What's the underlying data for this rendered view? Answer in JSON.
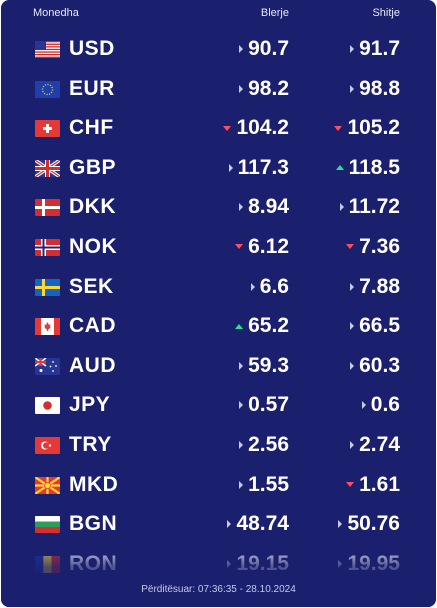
{
  "header": {
    "currency_label": "Monedha",
    "buy_label": "Blerje",
    "sell_label": "Shitje"
  },
  "colors": {
    "background": "#1a1f6e",
    "up": "#2ee08f",
    "down": "#ff4d5e",
    "flat": "#c5cae9"
  },
  "rates": [
    {
      "code": "USD",
      "flag": "us-flag",
      "buy": "90.7",
      "buy_trend": "flat",
      "sell": "91.7",
      "sell_trend": "flat"
    },
    {
      "code": "EUR",
      "flag": "eu-flag",
      "buy": "98.2",
      "buy_trend": "flat",
      "sell": "98.8",
      "sell_trend": "flat"
    },
    {
      "code": "CHF",
      "flag": "ch-flag",
      "buy": "104.2",
      "buy_trend": "down",
      "sell": "105.2",
      "sell_trend": "down"
    },
    {
      "code": "GBP",
      "flag": "gb-flag",
      "buy": "117.3",
      "buy_trend": "flat",
      "sell": "118.5",
      "sell_trend": "up"
    },
    {
      "code": "DKK",
      "flag": "dk-flag",
      "buy": "8.94",
      "buy_trend": "flat",
      "sell": "11.72",
      "sell_trend": "flat"
    },
    {
      "code": "NOK",
      "flag": "no-flag",
      "buy": "6.12",
      "buy_trend": "down",
      "sell": "7.36",
      "sell_trend": "down"
    },
    {
      "code": "SEK",
      "flag": "se-flag",
      "buy": "6.6",
      "buy_trend": "flat",
      "sell": "7.88",
      "sell_trend": "flat"
    },
    {
      "code": "CAD",
      "flag": "ca-flag",
      "buy": "65.2",
      "buy_trend": "up",
      "sell": "66.5",
      "sell_trend": "flat"
    },
    {
      "code": "AUD",
      "flag": "au-flag",
      "buy": "59.3",
      "buy_trend": "flat",
      "sell": "60.3",
      "sell_trend": "flat"
    },
    {
      "code": "JPY",
      "flag": "jp-flag",
      "buy": "0.57",
      "buy_trend": "flat",
      "sell": "0.6",
      "sell_trend": "flat"
    },
    {
      "code": "TRY",
      "flag": "tr-flag",
      "buy": "2.56",
      "buy_trend": "flat",
      "sell": "2.74",
      "sell_trend": "flat"
    },
    {
      "code": "MKD",
      "flag": "mk-flag",
      "buy": "1.55",
      "buy_trend": "flat",
      "sell": "1.61",
      "sell_trend": "down"
    },
    {
      "code": "BGN",
      "flag": "bg-flag",
      "buy": "48.74",
      "buy_trend": "flat",
      "sell": "50.76",
      "sell_trend": "flat"
    },
    {
      "code": "RON",
      "flag": "ro-flag",
      "buy": "19.15",
      "buy_trend": "flat",
      "sell": "19.95",
      "sell_trend": "flat"
    }
  ],
  "footer": {
    "updated": "Përditësuar: 07:36:35 - 28.10.2024"
  }
}
